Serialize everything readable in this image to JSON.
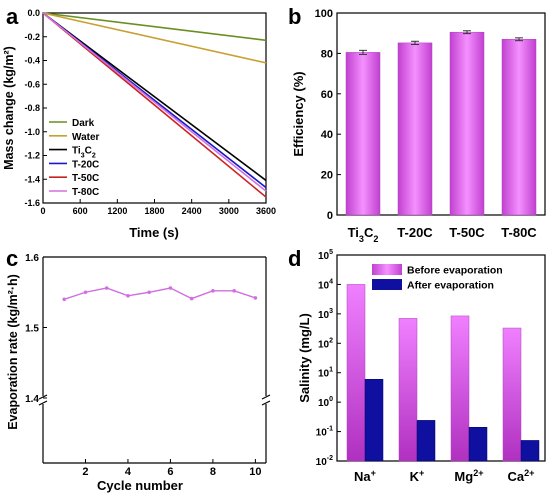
{
  "chart_data": [
    {
      "panel": "a",
      "type": "line",
      "xlabel": "Time (s)",
      "ylabel": "Mass change (kg/m²)",
      "xlim": [
        0,
        3600
      ],
      "ylim": [
        -1.6,
        0.0
      ],
      "xticks": [
        "0",
        "600",
        "1200",
        "1800",
        "2400",
        "3000",
        "3600"
      ],
      "yticks": [
        "0.0",
        "-0.2",
        "-0.4",
        "-0.6",
        "-0.8",
        "-1.0",
        "-1.2",
        "-1.4",
        "-1.6"
      ],
      "legend_position": "bottom-left",
      "series": [
        {
          "name": "Dark",
          "color": "#6b8e23",
          "x": [
            0,
            3600
          ],
          "y": [
            0,
            -0.23
          ]
        },
        {
          "name": "Water",
          "color": "#c8a030",
          "x": [
            0,
            3600
          ],
          "y": [
            0,
            -0.42
          ]
        },
        {
          "name": "Ti₃C₂",
          "color": "#000000",
          "x": [
            0,
            3600
          ],
          "y": [
            0,
            -1.41
          ]
        },
        {
          "name": "T-20C",
          "color": "#1a1acc",
          "x": [
            0,
            3600
          ],
          "y": [
            0,
            -1.47
          ]
        },
        {
          "name": "T-50C",
          "color": "#cc2222",
          "x": [
            0,
            3600
          ],
          "y": [
            0,
            -1.55
          ]
        },
        {
          "name": "T-80C",
          "color": "#d070e0",
          "x": [
            0,
            3600
          ],
          "y": [
            0,
            -1.5
          ]
        }
      ]
    },
    {
      "panel": "b",
      "type": "bar",
      "ylabel": "Efficiency (%)",
      "ylim": [
        0,
        100
      ],
      "yticks": [
        "0",
        "20",
        "40",
        "60",
        "80",
        "100"
      ],
      "categories": [
        "Ti₃C₂",
        "T-20C",
        "T-50C",
        "T-80C"
      ],
      "values": [
        80.5,
        85.2,
        90.5,
        87.0
      ],
      "errors": [
        1.0,
        0.8,
        0.7,
        0.7
      ],
      "color": "#e070f0"
    },
    {
      "panel": "c",
      "type": "line",
      "xlabel": "Cycle number",
      "ylabel": "Evaporation rate (kg/m²·h)",
      "xlim": [
        0,
        10.5
      ],
      "ylim_upper": [
        1.4,
        1.6
      ],
      "axis_break": true,
      "xticks": [
        "2",
        "4",
        "6",
        "8",
        "10"
      ],
      "yticks": [
        "1.4",
        "1.5",
        "1.6"
      ],
      "series": [
        {
          "color": "#d070e0",
          "x": [
            1,
            2,
            3,
            4,
            5,
            6,
            7,
            8,
            9,
            10
          ],
          "y": [
            1.54,
            1.55,
            1.556,
            1.545,
            1.55,
            1.556,
            1.541,
            1.552,
            1.552,
            1.542
          ]
        }
      ]
    },
    {
      "panel": "d",
      "type": "bar",
      "ylabel": "Salinity (mg/L)",
      "yscale": "log",
      "ylim": [
        0.01,
        100000
      ],
      "yticks": [
        "10-2",
        "10-1",
        "100",
        "101",
        "102",
        "103",
        "104",
        "105"
      ],
      "categories": [
        "Na⁺",
        "K⁺",
        "Mg²⁺",
        "Ca²⁺"
      ],
      "legend_position": "top-right",
      "series": [
        {
          "name": "Before evaporation",
          "color": "#e070f0",
          "values": [
            10000,
            700,
            850,
            330
          ]
        },
        {
          "name": "After evaporation",
          "color": "#1010a0",
          "values": [
            6.0,
            0.24,
            0.14,
            0.05
          ]
        }
      ]
    }
  ],
  "panel_letters": [
    "a",
    "b",
    "c",
    "d"
  ]
}
